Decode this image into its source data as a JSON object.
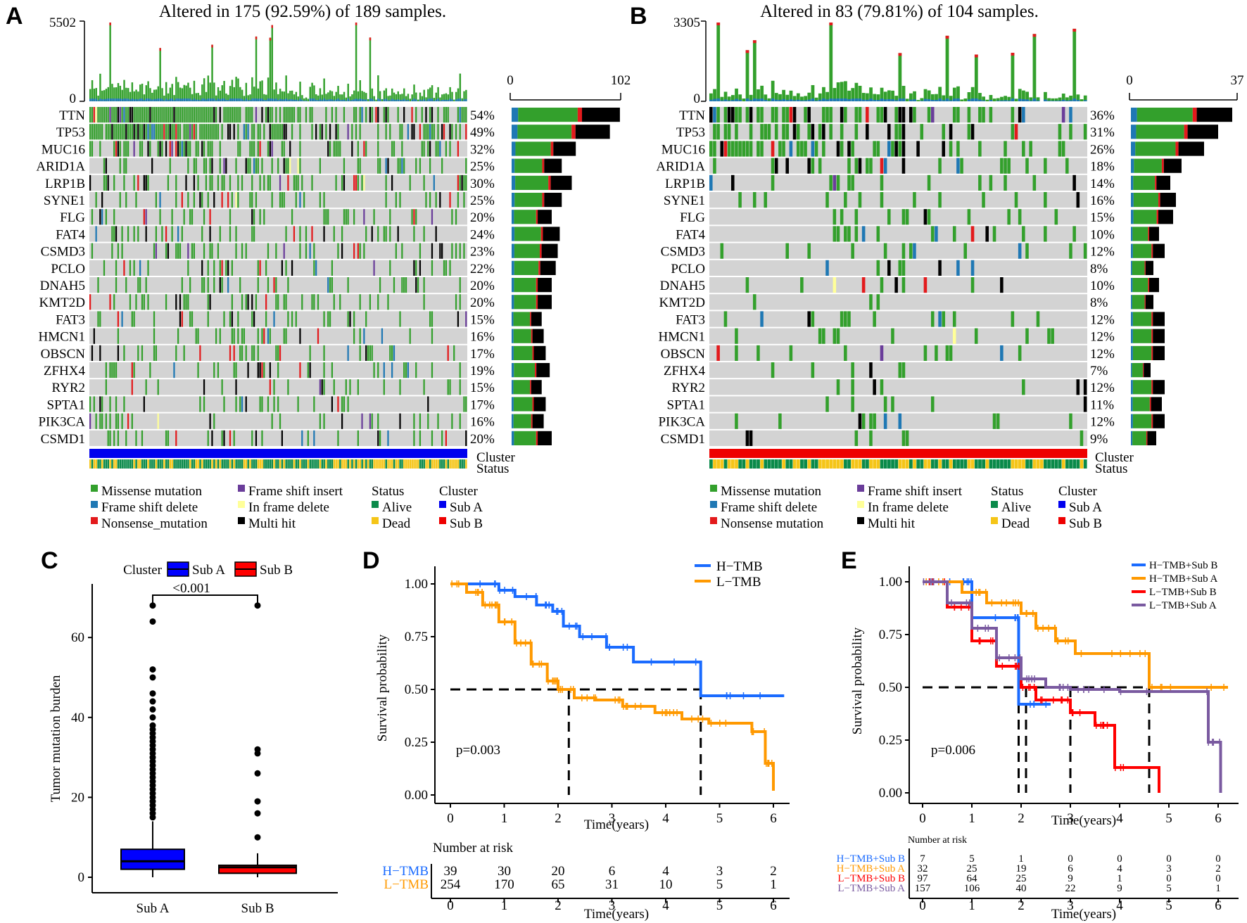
{
  "panels": {
    "a": "A",
    "b": "B",
    "c": "C",
    "d": "D",
    "e": "E"
  },
  "chart_data": [
    {
      "type": "heatmap",
      "panel": "A",
      "title": "Altered in 175 (92.59%) of 189 samples.",
      "top_axis": {
        "max_label": "5502",
        "min_label": "0"
      },
      "right_axis": {
        "min_label": "0",
        "max_label": "102"
      },
      "genes": [
        "TTN",
        "TP53",
        "MUC16",
        "ARID1A",
        "LRP1B",
        "SYNE1",
        "FLG",
        "FAT4",
        "CSMD3",
        "PCLO",
        "DNAH5",
        "KMT2D",
        "FAT3",
        "HMCN1",
        "OBSCN",
        "ZFHX4",
        "RYR2",
        "SPTA1",
        "PIK3CA",
        "CSMD1"
      ],
      "percents": [
        "54%",
        "49%",
        "32%",
        "25%",
        "30%",
        "25%",
        "20%",
        "24%",
        "23%",
        "22%",
        "20%",
        "20%",
        "15%",
        "16%",
        "17%",
        "19%",
        "15%",
        "17%",
        "16%",
        "20%"
      ],
      "fractions": [
        0.54,
        0.49,
        0.32,
        0.25,
        0.3,
        0.25,
        0.2,
        0.24,
        0.23,
        0.22,
        0.2,
        0.2,
        0.15,
        0.16,
        0.17,
        0.19,
        0.15,
        0.17,
        0.16,
        0.2
      ],
      "annotation_rows": [
        "Cluster",
        "Status"
      ],
      "cluster_color": "#0000ee",
      "seed": 11
    },
    {
      "type": "heatmap",
      "panel": "B",
      "title": "Altered in 83 (79.81%) of 104 samples.",
      "top_axis": {
        "max_label": "3305",
        "min_label": "0"
      },
      "right_axis": {
        "min_label": "0",
        "max_label": "37"
      },
      "genes": [
        "TTN",
        "TP53",
        "MUC16",
        "ARID1A",
        "LRP1B",
        "SYNE1",
        "FLG",
        "FAT4",
        "CSMD3",
        "PCLO",
        "DNAH5",
        "KMT2D",
        "FAT3",
        "HMCN1",
        "OBSCN",
        "ZFHX4",
        "RYR2",
        "SPTA1",
        "PIK3CA",
        "CSMD1"
      ],
      "percents": [
        "36%",
        "31%",
        "26%",
        "18%",
        "14%",
        "16%",
        "15%",
        "10%",
        "12%",
        "8%",
        "10%",
        "8%",
        "12%",
        "12%",
        "12%",
        "7%",
        "12%",
        "11%",
        "12%",
        "9%"
      ],
      "fractions": [
        0.36,
        0.31,
        0.26,
        0.18,
        0.14,
        0.16,
        0.15,
        0.1,
        0.12,
        0.08,
        0.1,
        0.08,
        0.12,
        0.12,
        0.12,
        0.07,
        0.12,
        0.11,
        0.12,
        0.09
      ],
      "annotation_rows": [
        "Cluster",
        "Status"
      ],
      "cluster_color": "#ee0000",
      "seed": 29
    },
    {
      "type": "box",
      "panel": "C",
      "legend_title": "Cluster",
      "groups": [
        "Sub A",
        "Sub B"
      ],
      "colors": [
        "#0000ff",
        "#ff0000"
      ],
      "ylabel": "Tumor  mutation burden",
      "ylim": [
        0,
        72
      ],
      "yticks": [
        0,
        20,
        40,
        60
      ],
      "pvalue": "<0.001",
      "boxes": [
        {
          "q1": 2.0,
          "median": 4.0,
          "q3": 7.0,
          "whisker_low": 0,
          "whisker_high": 14
        },
        {
          "q1": 1.0,
          "median": 2.5,
          "q3": 3.0,
          "whisker_low": 0,
          "whisker_high": 6
        }
      ],
      "outliers": [
        [
          68,
          64,
          52,
          50,
          46,
          44,
          42,
          40,
          38,
          37,
          36,
          35,
          34,
          33,
          32,
          31,
          30,
          29,
          28,
          27,
          26,
          25,
          24,
          23,
          22,
          21,
          20,
          19,
          18,
          17,
          16,
          15
        ],
        [
          68,
          32,
          31,
          26,
          19,
          16,
          10
        ]
      ]
    },
    {
      "type": "line",
      "panel": "D",
      "xlabel": "Time(years)",
      "ylabel": "Survival probability",
      "xlim": [
        0,
        6.2
      ],
      "ylim": [
        0,
        1
      ],
      "xticks": [
        "0",
        "1",
        "2",
        "3",
        "4",
        "5",
        "6"
      ],
      "yticks": [
        "0.00",
        "0.25",
        "0.50",
        "0.75",
        "1.00"
      ],
      "pvalue": "p=0.003",
      "median_lines": [
        2.2,
        4.65
      ],
      "series": [
        {
          "name": "H−TMB",
          "color": "#1a6bff",
          "x": [
            0,
            0.9,
            1.2,
            1.6,
            1.9,
            2.1,
            2.4,
            2.9,
            3.4,
            4.65,
            6.2
          ],
          "y": [
            1.0,
            0.97,
            0.94,
            0.9,
            0.87,
            0.8,
            0.75,
            0.7,
            0.63,
            0.47,
            0.47
          ]
        },
        {
          "name": "L−TMB",
          "color": "#ff9900",
          "x": [
            0,
            0.3,
            0.6,
            0.9,
            1.2,
            1.5,
            1.8,
            2.0,
            2.3,
            2.7,
            3.2,
            3.8,
            4.3,
            4.8,
            5.6,
            5.85,
            6.0
          ],
          "y": [
            1.0,
            0.96,
            0.9,
            0.82,
            0.72,
            0.62,
            0.54,
            0.5,
            0.46,
            0.45,
            0.42,
            0.39,
            0.36,
            0.34,
            0.3,
            0.15,
            0.02
          ]
        }
      ],
      "risk_table": {
        "title": "Number at risk",
        "times": [
          "0",
          "1",
          "2",
          "3",
          "4",
          "5",
          "6"
        ],
        "rows": [
          {
            "label": "H−TMB",
            "color": "#1a6bff",
            "values": [
              "39",
              "30",
              "20",
              "6",
              "4",
              "3",
              "2"
            ]
          },
          {
            "label": "L−TMB",
            "color": "#ff9900",
            "values": [
              "254",
              "170",
              "65",
              "31",
              "10",
              "5",
              "1"
            ]
          }
        ],
        "xlabel": "Time(years)"
      }
    },
    {
      "type": "line",
      "panel": "E",
      "xlabel": "Time(years)",
      "ylabel": "Survival probability",
      "xlim": [
        0,
        6.2
      ],
      "ylim": [
        0,
        1
      ],
      "xticks": [
        "0",
        "1",
        "2",
        "3",
        "4",
        "5",
        "6"
      ],
      "yticks": [
        "0.00",
        "0.25",
        "0.50",
        "0.75",
        "1.00"
      ],
      "pvalue": "p=0.006",
      "median_lines": [
        1.95,
        2.1,
        3.0,
        4.6
      ],
      "series": [
        {
          "name": "H−TMB+Sub B",
          "color": "#1a6bff",
          "x": [
            0,
            0.9,
            1.0,
            1.9,
            1.95,
            2.6
          ],
          "y": [
            1.0,
            1.0,
            0.83,
            0.83,
            0.42,
            0.42
          ]
        },
        {
          "name": "H−TMB+Sub A",
          "color": "#ff9900",
          "x": [
            0,
            0.8,
            1.3,
            2.0,
            2.3,
            2.7,
            3.1,
            4.6,
            6.2
          ],
          "y": [
            1.0,
            0.95,
            0.9,
            0.85,
            0.78,
            0.72,
            0.66,
            0.5,
            0.5
          ]
        },
        {
          "name": "L−TMB+Sub B",
          "color": "#ff0000",
          "x": [
            0,
            0.5,
            1.0,
            1.5,
            2.0,
            2.3,
            3.0,
            3.5,
            3.9,
            4.8
          ],
          "y": [
            1.0,
            0.88,
            0.72,
            0.6,
            0.5,
            0.44,
            0.38,
            0.32,
            0.12,
            0.0
          ]
        },
        {
          "name": "L−TMB+Sub A",
          "color": "#7a5aa0",
          "x": [
            0,
            0.5,
            1.0,
            1.5,
            2.0,
            2.5,
            3.0,
            4.0,
            5.8,
            6.05
          ],
          "y": [
            1.0,
            0.9,
            0.78,
            0.64,
            0.54,
            0.5,
            0.49,
            0.48,
            0.24,
            0.0
          ]
        }
      ],
      "risk_table": {
        "title": "Number at risk",
        "times": [
          "0",
          "1",
          "2",
          "3",
          "4",
          "5",
          "6"
        ],
        "rows": [
          {
            "label": "H−TMB+Sub B",
            "color": "#1a6bff",
            "values": [
              "7",
              "5",
              "1",
              "0",
              "0",
              "0",
              "0"
            ]
          },
          {
            "label": "H−TMB+Sub A",
            "color": "#ff9900",
            "values": [
              "32",
              "25",
              "19",
              "6",
              "4",
              "3",
              "2"
            ]
          },
          {
            "label": "L−TMB+Sub B",
            "color": "#ff0000",
            "values": [
              "97",
              "64",
              "25",
              "9",
              "1",
              "0",
              "0"
            ]
          },
          {
            "label": "L−TMB+Sub A",
            "color": "#7a5aa0",
            "values": [
              "157",
              "106",
              "40",
              "22",
              "9",
              "5",
              "1"
            ]
          }
        ],
        "xlabel": "Time(years)"
      }
    }
  ],
  "legend_onco": {
    "col1": [
      {
        "label": "Missense mutation",
        "color": "#33a02c"
      },
      {
        "label": "Frame shift delete",
        "color": "#1f78b4"
      },
      {
        "label": "Nonsense_mutation",
        "color": "#e31a1c"
      }
    ],
    "col2": [
      {
        "label": "Frame shift insert",
        "color": "#6a3d9a"
      },
      {
        "label": "In frame delete",
        "color": "#ffff99"
      },
      {
        "label": "Multi hit",
        "color": "#000000"
      }
    ],
    "status_title": "Status",
    "status": [
      {
        "label": "Alive",
        "color": "#0a8a4a"
      },
      {
        "label": "Dead",
        "color": "#f5c518"
      }
    ],
    "cluster_title": "Cluster",
    "cluster": [
      {
        "label": "Sub A",
        "color": "#0000ee"
      },
      {
        "label": "Sub B",
        "color": "#ee0000"
      }
    ]
  },
  "legend_onco_b_nonsense": "Nonsense mutation",
  "colors": {
    "missense": "#33a02c",
    "fs_del": "#1f78b4",
    "nonsense": "#e31a1c",
    "fs_ins": "#6a3d9a",
    "inframe": "#ffff99",
    "multi": "#000000",
    "background": "#d3d3d3",
    "alive": "#0a8a4a",
    "dead": "#f5c518"
  }
}
